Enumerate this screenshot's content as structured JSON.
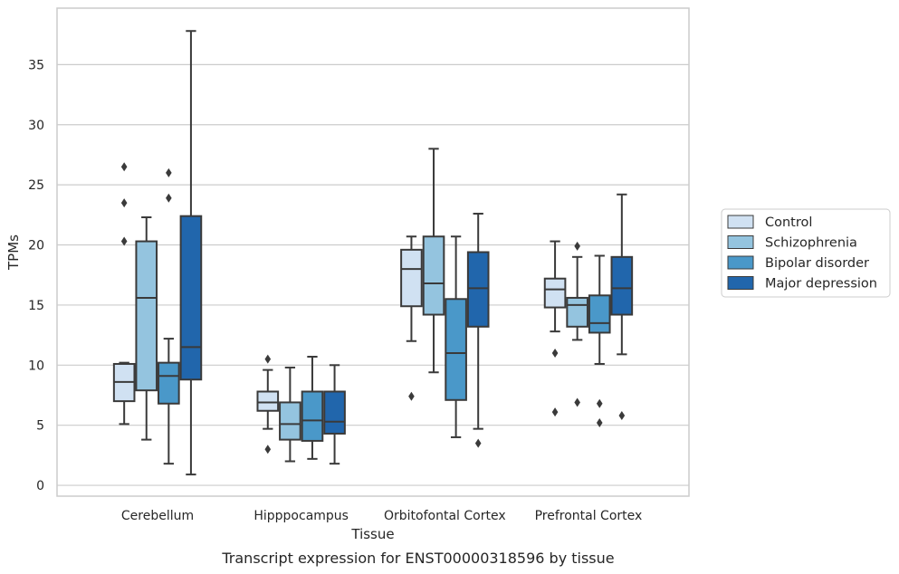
{
  "caption": "Transcript expression for ENST00000318596 by tissue",
  "chart_data": {
    "type": "box",
    "xlabel": "Tissue",
    "ylabel": "TPMs",
    "ylim": [
      -0.9,
      39.7
    ],
    "yticks": [
      0,
      5,
      10,
      15,
      20,
      25,
      30,
      35
    ],
    "grid": "horizontal",
    "legend_position": "right",
    "categories": [
      "Cerebellum",
      "Hipppocampus",
      "Orbitofontal Cortex",
      "Prefrontal Cortex"
    ],
    "series": [
      {
        "name": "Control",
        "color": "#d0e1f2",
        "boxes": [
          {
            "whislo": 5.1,
            "q1": 7.0,
            "med": 8.6,
            "q3": 10.1,
            "whishi": 10.2,
            "fliers": [
              20.3,
              23.5,
              26.5
            ]
          },
          {
            "whislo": 4.7,
            "q1": 6.2,
            "med": 6.9,
            "q3": 7.8,
            "whishi": 9.6,
            "fliers": [
              3.0,
              10.5
            ]
          },
          {
            "whislo": 12.0,
            "q1": 14.9,
            "med": 18.0,
            "q3": 19.6,
            "whishi": 20.7,
            "fliers": [
              7.4
            ]
          },
          {
            "whislo": 12.8,
            "q1": 14.8,
            "med": 16.3,
            "q3": 17.2,
            "whishi": 20.3,
            "fliers": [
              6.1,
              11.0
            ]
          }
        ]
      },
      {
        "name": "Schizophrenia",
        "color": "#94c4df",
        "boxes": [
          {
            "whislo": 3.8,
            "q1": 7.9,
            "med": 15.6,
            "q3": 20.3,
            "whishi": 22.3,
            "fliers": []
          },
          {
            "whislo": 2.0,
            "q1": 3.8,
            "med": 5.1,
            "q3": 6.9,
            "whishi": 9.8,
            "fliers": []
          },
          {
            "whislo": 9.4,
            "q1": 14.2,
            "med": 16.8,
            "q3": 20.7,
            "whishi": 28.0,
            "fliers": []
          },
          {
            "whislo": 12.1,
            "q1": 13.2,
            "med": 15.0,
            "q3": 15.6,
            "whishi": 19.0,
            "fliers": [
              6.9,
              19.9
            ]
          }
        ]
      },
      {
        "name": "Bipolar disorder",
        "color": "#4a98c9",
        "boxes": [
          {
            "whislo": 1.8,
            "q1": 6.8,
            "med": 9.1,
            "q3": 10.2,
            "whishi": 12.2,
            "fliers": [
              23.9,
              26.0
            ]
          },
          {
            "whislo": 2.2,
            "q1": 3.7,
            "med": 5.4,
            "q3": 7.8,
            "whishi": 10.7,
            "fliers": []
          },
          {
            "whislo": 4.0,
            "q1": 7.1,
            "med": 11.0,
            "q3": 15.5,
            "whishi": 20.7,
            "fliers": []
          },
          {
            "whislo": 10.1,
            "q1": 12.7,
            "med": 13.5,
            "q3": 15.8,
            "whishi": 19.1,
            "fliers": [
              5.2,
              6.8
            ]
          }
        ]
      },
      {
        "name": "Major depression",
        "color": "#2166ac",
        "boxes": [
          {
            "whislo": 0.9,
            "q1": 8.8,
            "med": 11.5,
            "q3": 22.4,
            "whishi": 37.8,
            "fliers": []
          },
          {
            "whislo": 1.8,
            "q1": 4.3,
            "med": 5.3,
            "q3": 7.8,
            "whishi": 10.0,
            "fliers": []
          },
          {
            "whislo": 4.7,
            "q1": 13.2,
            "med": 16.4,
            "q3": 19.4,
            "whishi": 22.6,
            "fliers": [
              3.5
            ]
          },
          {
            "whislo": 10.9,
            "q1": 14.2,
            "med": 16.4,
            "q3": 19.0,
            "whishi": 24.2,
            "fliers": [
              5.8
            ]
          }
        ]
      }
    ]
  }
}
